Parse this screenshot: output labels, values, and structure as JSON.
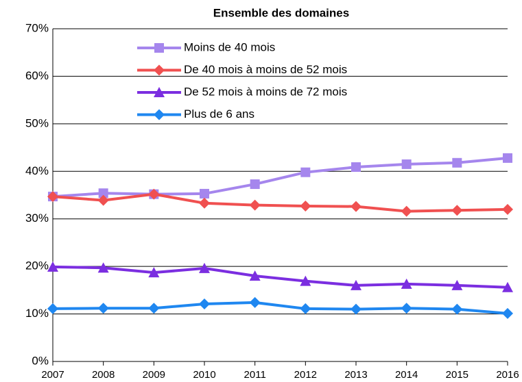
{
  "chart_data": {
    "type": "line",
    "title": "Ensemble des domaines",
    "categories": [
      "2007",
      "2008",
      "2009",
      "2010",
      "2011",
      "2012",
      "2013",
      "2014",
      "2015",
      "2016"
    ],
    "series": [
      {
        "name": "Moins de 40 mois",
        "color": "#a586ed",
        "marker": "square",
        "values": [
          34.7,
          35.4,
          35.2,
          35.3,
          37.3,
          39.8,
          40.9,
          41.5,
          41.8,
          42.8
        ]
      },
      {
        "name": "De 40 mois à moins de 52 mois",
        "color": "#f05050",
        "marker": "diamond",
        "values": [
          34.7,
          33.9,
          35.2,
          33.3,
          32.9,
          32.7,
          32.6,
          31.6,
          31.8,
          32.0
        ]
      },
      {
        "name": "De 52 mois à moins de 72 mois",
        "color": "#7b2ee0",
        "marker": "triangle",
        "values": [
          19.9,
          19.7,
          18.7,
          19.6,
          18.0,
          16.9,
          16.0,
          16.3,
          16.0,
          15.6
        ]
      },
      {
        "name": "Plus de 6 ans",
        "color": "#1f87f0",
        "marker": "diamond",
        "values": [
          11.1,
          11.2,
          11.2,
          12.1,
          12.4,
          11.1,
          11.0,
          11.2,
          11.0,
          10.1
        ]
      }
    ],
    "ylim": [
      0,
      70
    ],
    "yticks": [
      {
        "value": 0,
        "label": "0%"
      },
      {
        "value": 10,
        "label": "10%"
      },
      {
        "value": 20,
        "label": "20%"
      },
      {
        "value": 30,
        "label": "30%"
      },
      {
        "value": 40,
        "label": "40%"
      },
      {
        "value": 50,
        "label": "50%"
      },
      {
        "value": 60,
        "label": "60%"
      },
      {
        "value": 70,
        "label": "70%"
      }
    ],
    "grid": true
  }
}
